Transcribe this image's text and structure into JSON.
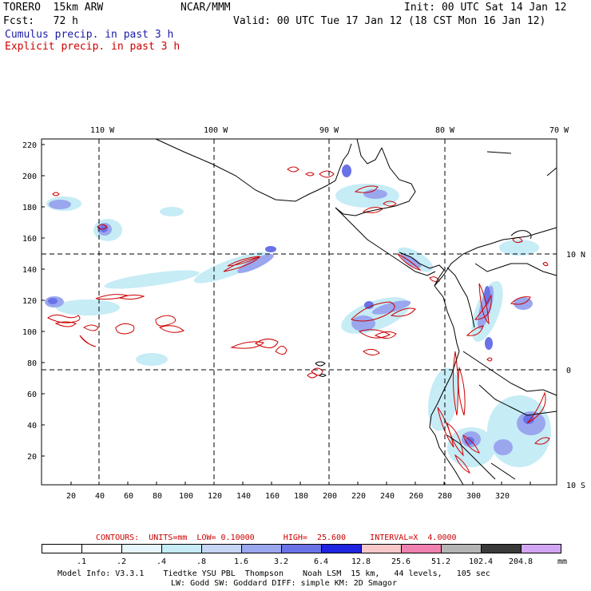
{
  "header": {
    "model": "TORERO  15km ARW",
    "org": "NCAR/MMM",
    "init": "Init: 00 UTC Sat 14 Jan 12",
    "fcst": "Fcst:   72 h",
    "valid": "Valid: 00 UTC Tue 17 Jan 12 (18 CST Mon 16 Jan 12)",
    "field1": "Cumulus precip. in past 3 h",
    "field2": "Explicit precip. in past 3 h",
    "field1_color": "#1a1aa8",
    "field2_color": "#cc0000"
  },
  "map": {
    "lon_labels": [
      "110 W",
      "100 W",
      "90 W",
      "80 W",
      "70 W"
    ],
    "lat_labels": [
      "10 N",
      "0",
      "10 S"
    ],
    "y_ticks": [
      "220",
      "200",
      "180",
      "160",
      "140",
      "120",
      "100",
      "80",
      "60",
      "40",
      "20"
    ],
    "x_ticks": [
      "20",
      "40",
      "60",
      "80",
      "100",
      "120",
      "140",
      "160",
      "180",
      "200",
      "220",
      "240",
      "260",
      "280",
      "300",
      "320"
    ]
  },
  "contours_note": {
    "label": "CONTOURS:  UNITS=mm  LOW= 0.10000      HIGH=  25.600     INTERVAL=X  4.0000",
    "color": "#cc0000"
  },
  "colorbar": {
    "values": [
      ".1",
      ".2",
      ".4",
      ".8",
      "1.6",
      "3.2",
      "6.4",
      "12.8",
      "25.6",
      "51.2",
      "102.4",
      "204.8"
    ],
    "unit": "mm",
    "colors": [
      "#ffffff",
      "#ffffff",
      "#e6f6fb",
      "#c6ecf6",
      "#c6d6f4",
      "#9aa6ee",
      "#6a72e8",
      "#1e24e0",
      "#f6c8c8",
      "#f080b0",
      "#b4b4b4",
      "#3a3a3a",
      "#d2a6f4"
    ]
  },
  "footer": {
    "line1": "Model Info: V3.3.1    Tiedtke YSU PBL  Thompson    Noah LSM  15 km,   44 levels,   105 sec",
    "line2": "LW: Godd SW: Goddard DIFF: simple KM: 2D Smagor"
  }
}
